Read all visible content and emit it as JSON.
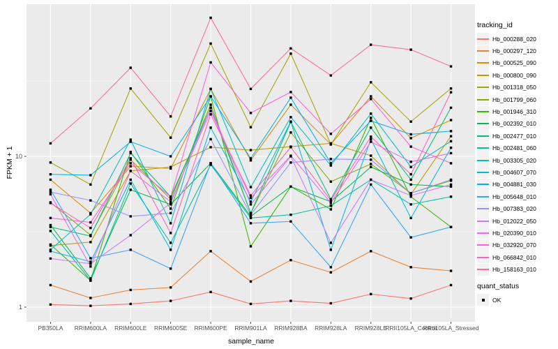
{
  "chart_data": {
    "type": "line",
    "title": "",
    "xlabel": "sample_name",
    "ylabel": "FPKM + 1",
    "y_scale": "log10",
    "y_major_ticks": [
      1,
      10
    ],
    "y_minor_gridlines": [
      3.162,
      31.62
    ],
    "ylim": [
      0.8,
      102
    ],
    "grid": true,
    "legend_position": "right",
    "legend_title": "tracking_id",
    "point_legend_title": "quant_status",
    "point_legend_entries": [
      {
        "label": "OK",
        "marker": "square",
        "color": "#000000"
      }
    ],
    "categories": [
      "PB350LA",
      "RRIM600LA",
      "RRIM600LE",
      "RRIM600SE",
      "RRIM600PE",
      "RRIM901LA",
      "RRIM928BA",
      "RRIM928LA",
      "RRIM928LE",
      "RRII105LA_Control",
      "RRII105LA_Stressed"
    ],
    "series": [
      {
        "name": "Hb_000288_020",
        "color": "#F8766D",
        "values": [
          1.04,
          1.02,
          1.05,
          1.1,
          1.26,
          1.05,
          1.1,
          1.06,
          1.22,
          1.14,
          1.4
        ]
      },
      {
        "name": "Hb_000297_120",
        "color": "#EA8331",
        "values": [
          1.4,
          1.15,
          1.3,
          1.35,
          2.35,
          1.48,
          2.05,
          1.7,
          2.35,
          1.84,
          1.74
        ]
      },
      {
        "name": "Hb_000525_090",
        "color": "#D89000",
        "values": [
          7.0,
          4.2,
          8.6,
          8.3,
          28.0,
          9.4,
          22.0,
          12.0,
          25.0,
          13.2,
          17.4
        ]
      },
      {
        "name": "Hb_000800_090",
        "color": "#C09B00",
        "values": [
          2.56,
          2.7,
          8.0,
          8.5,
          11.5,
          11.0,
          11.6,
          12.2,
          10.1,
          5.6,
          13.6
        ]
      },
      {
        "name": "Hb_001318_050",
        "color": "#A3A500",
        "values": [
          9.1,
          6.5,
          28.2,
          13.3,
          56.0,
          15.6,
          48.0,
          12.0,
          31.0,
          17.0,
          28.2
        ]
      },
      {
        "name": "Hb_001799_060",
        "color": "#7CAE00",
        "values": [
          4.95,
          3.0,
          9.5,
          5.2,
          22.0,
          4.2,
          14.4,
          6.8,
          8.9,
          5.7,
          6.9
        ]
      },
      {
        "name": "Hb_001946_310",
        "color": "#39B600",
        "values": [
          2.6,
          1.5,
          10.7,
          4.5,
          25.0,
          2.53,
          6.3,
          4.45,
          18.0,
          5.4,
          3.4
        ]
      },
      {
        "name": "Hb_002392_010",
        "color": "#00BB4E",
        "values": [
          3.5,
          1.55,
          6.0,
          4.8,
          9.0,
          4.0,
          6.3,
          5.0,
          8.5,
          6.5,
          6.3
        ]
      },
      {
        "name": "Hb_002477_010",
        "color": "#00BF7D",
        "values": [
          3.4,
          2.96,
          10.5,
          5.4,
          21.0,
          4.2,
          16.9,
          5.2,
          15.5,
          7.0,
          21.0
        ]
      },
      {
        "name": "Hb_002481_060",
        "color": "#00C1A3",
        "values": [
          3.2,
          1.5,
          6.6,
          2.67,
          8.8,
          3.9,
          4.1,
          4.7,
          7.0,
          4.8,
          5.4
        ]
      },
      {
        "name": "Hb_003305_020",
        "color": "#00BFC4",
        "values": [
          2.4,
          4.13,
          12.9,
          3.6,
          28.0,
          6.25,
          18.2,
          8.7,
          19.2,
          8.5,
          12.6
        ]
      },
      {
        "name": "Hb_004607_070",
        "color": "#00BAE0",
        "values": [
          2.35,
          2.0,
          7.0,
          2.4,
          15.5,
          5.0,
          17.0,
          2.4,
          13.0,
          3.9,
          11.4
        ]
      },
      {
        "name": "Hb_004881_030",
        "color": "#00B0F6",
        "values": [
          7.6,
          7.5,
          12.5,
          10.0,
          25.0,
          9.7,
          24.5,
          9.0,
          17.2,
          14.0,
          14.7
        ]
      },
      {
        "name": "Hb_005648_010",
        "color": "#35A2FF",
        "values": [
          6.0,
          2.11,
          2.4,
          1.8,
          9.0,
          3.6,
          3.7,
          1.84,
          6.5,
          2.9,
          3.4
        ]
      },
      {
        "name": "Hb_007383_020",
        "color": "#9590FF",
        "values": [
          5.8,
          5.1,
          4.0,
          4.2,
          13.0,
          4.1,
          9.1,
          9.6,
          9.5,
          5.7,
          7.0
        ]
      },
      {
        "name": "Hb_012022_050",
        "color": "#C77CFF",
        "values": [
          2.1,
          1.94,
          3.0,
          4.9,
          21.0,
          4.8,
          10.0,
          2.67,
          7.0,
          5.5,
          6.5
        ]
      },
      {
        "name": "Hb_020390_010",
        "color": "#E76BF3",
        "values": [
          5.6,
          1.86,
          8.0,
          5.0,
          20.0,
          5.3,
          10.1,
          4.9,
          12.5,
          9.2,
          10.5
        ]
      },
      {
        "name": "Hb_032920_070",
        "color": "#FA62DB",
        "values": [
          3.9,
          3.65,
          9.0,
          5.4,
          42.0,
          19.4,
          26.7,
          14.1,
          24.0,
          11.6,
          9.0
        ]
      },
      {
        "name": "Hb_066842_010",
        "color": "#FF62BC",
        "values": [
          4.9,
          3.35,
          9.7,
          3.1,
          19.0,
          5.5,
          11.5,
          5.1,
          13.5,
          7.6,
          26.6
        ]
      },
      {
        "name": "Hb_158163_010",
        "color": "#FF6A98",
        "values": [
          12.2,
          20.8,
          38.7,
          18.4,
          83.0,
          28.0,
          52.0,
          34.4,
          55.0,
          51.0,
          39.5
        ]
      }
    ]
  },
  "colors": {
    "panel_bg": "#EBEBEB",
    "grid": "#FFFFFF",
    "legend_key_bg": "#F2F2F2",
    "tick_label": "#4D4D4D",
    "tick_mark": "#333333",
    "axis_title": "#000000",
    "point": "#000000"
  }
}
